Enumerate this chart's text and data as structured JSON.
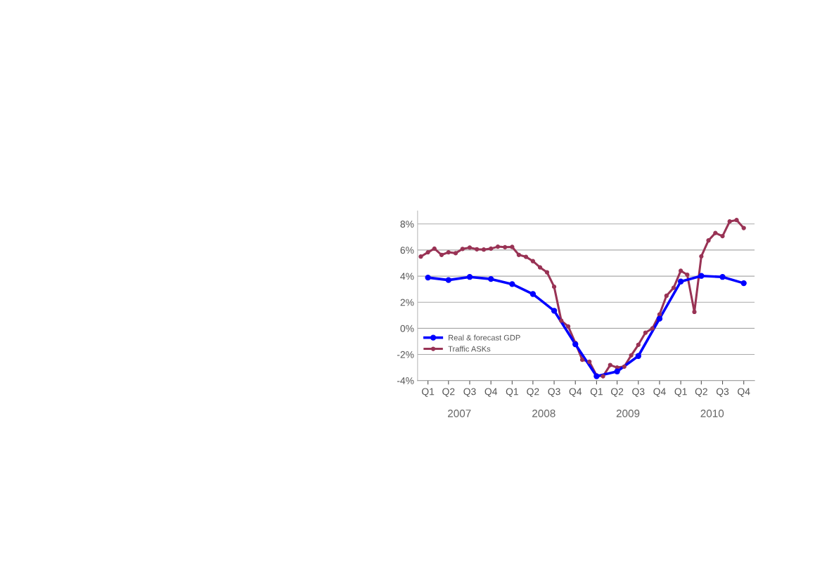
{
  "chart_data": {
    "type": "line",
    "xlim": [
      "2007-01-01",
      "2011-01-01"
    ],
    "xticks": [
      {
        "value": "2007-02-15",
        "label": "Q1"
      },
      {
        "value": "2007-05-15",
        "label": "Q2"
      },
      {
        "value": "2007-08-15",
        "label": "Q3"
      },
      {
        "value": "2007-11-15",
        "label": "Q4"
      },
      {
        "value": "2008-02-15",
        "label": "Q1"
      },
      {
        "value": "2008-05-15",
        "label": "Q2"
      },
      {
        "value": "2008-08-15",
        "label": "Q3"
      },
      {
        "value": "2008-11-15",
        "label": "Q4"
      },
      {
        "value": "2009-02-15",
        "label": "Q1"
      },
      {
        "value": "2009-05-15",
        "label": "Q2"
      },
      {
        "value": "2009-08-15",
        "label": "Q3"
      },
      {
        "value": "2009-11-15",
        "label": "Q4"
      },
      {
        "value": "2010-02-15",
        "label": "Q1"
      },
      {
        "value": "2010-05-15",
        "label": "Q2"
      },
      {
        "value": "2010-08-15",
        "label": "Q3"
      },
      {
        "value": "2010-11-15",
        "label": "Q4"
      }
    ],
    "x2lim": [
      "2007-01-01",
      "2011-01-01"
    ],
    "x2ticks": [
      {
        "value": "2007-07-01",
        "label": "2007"
      },
      {
        "value": "2008-07-01",
        "label": "2008"
      },
      {
        "value": "2009-07-01",
        "label": "2009"
      },
      {
        "value": "2010-07-01",
        "label": "2010"
      }
    ],
    "ylim": [
      -4,
      9
    ],
    "yticks": [
      {
        "value": -4,
        "label": "-4%"
      },
      {
        "value": -2,
        "label": "-2%"
      },
      {
        "value": 0,
        "label": "0%"
      },
      {
        "value": 2,
        "label": "2%"
      },
      {
        "value": 4,
        "label": "4%"
      },
      {
        "value": 6,
        "label": "6%"
      },
      {
        "value": 8,
        "label": "8%"
      }
    ],
    "grid": "y",
    "legend": "lower left",
    "marker": "circle",
    "line_style": "solid",
    "series": [
      {
        "name": "Real & forecast GDP",
        "color": "#0000ff",
        "x": [
          "2007-02-15",
          "2007-05-15",
          "2007-08-15",
          "2007-11-15",
          "2008-02-15",
          "2008-05-15",
          "2008-08-15",
          "2008-11-15",
          "2009-02-15",
          "2009-05-15",
          "2009-08-15",
          "2009-11-15",
          "2010-02-15",
          "2010-05-15",
          "2010-08-15",
          "2010-11-15"
        ],
        "values": [
          3.89,
          3.7,
          3.94,
          3.78,
          3.39,
          2.63,
          1.35,
          -1.22,
          -3.67,
          -3.3,
          -2.12,
          0.74,
          3.59,
          4.02,
          3.94,
          3.46
        ]
      },
      {
        "name": "Traffic ASKs",
        "color": "#993355",
        "x": [
          "2007-01-15",
          "2007-02-15",
          "2007-03-15",
          "2007-04-15",
          "2007-05-15",
          "2007-06-15",
          "2007-07-15",
          "2007-08-15",
          "2007-09-15",
          "2007-10-15",
          "2007-11-15",
          "2007-12-15",
          "2008-01-15",
          "2008-02-15",
          "2008-03-15",
          "2008-04-15",
          "2008-05-15",
          "2008-06-15",
          "2008-07-15",
          "2008-08-15",
          "2008-09-15",
          "2008-10-15",
          "2008-11-15",
          "2008-12-15",
          "2009-01-15",
          "2009-02-15",
          "2009-03-15",
          "2009-04-15",
          "2009-05-15",
          "2009-06-15",
          "2009-07-15",
          "2009-08-15",
          "2009-09-15",
          "2009-10-15",
          "2009-11-15",
          "2009-12-15",
          "2010-01-15",
          "2010-02-15",
          "2010-03-15",
          "2010-04-15",
          "2010-05-15",
          "2010-06-15",
          "2010-07-15",
          "2010-08-15",
          "2010-09-15",
          "2010-10-15",
          "2010-11-15"
        ],
        "values": [
          5.5,
          5.83,
          6.11,
          5.63,
          5.83,
          5.76,
          6.09,
          6.19,
          6.06,
          6.04,
          6.11,
          6.26,
          6.22,
          6.24,
          5.63,
          5.48,
          5.15,
          4.67,
          4.3,
          3.19,
          0.59,
          0.15,
          -1.11,
          -2.41,
          -2.56,
          -3.61,
          -3.67,
          -2.81,
          -3.0,
          -2.93,
          -2.07,
          -1.26,
          -0.33,
          0.0,
          1.07,
          2.5,
          3.11,
          4.41,
          4.11,
          1.26,
          5.52,
          6.74,
          7.31,
          7.07,
          8.19,
          8.3,
          7.69
        ]
      }
    ]
  }
}
